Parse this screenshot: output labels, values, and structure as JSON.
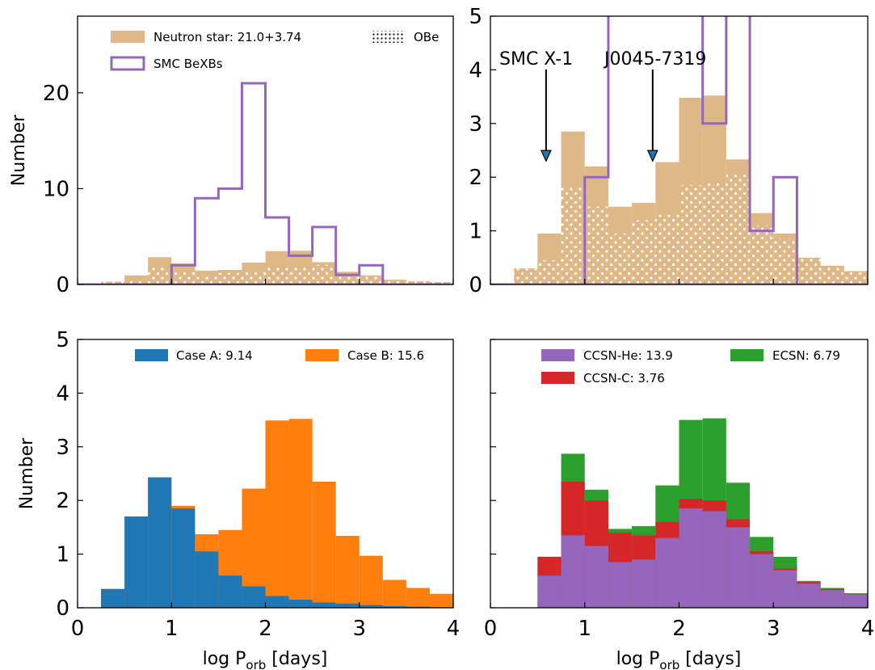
{
  "chart_data": [
    {
      "type": "histogram",
      "panel": "top-left",
      "ylabel": "Number",
      "xlim": [
        0,
        4
      ],
      "ylim": [
        0,
        28
      ],
      "xticks": [
        0,
        1,
        2,
        3,
        4
      ],
      "yticks": [
        0,
        10,
        20
      ],
      "bin_edges": [
        0.25,
        0.5,
        0.75,
        1.0,
        1.25,
        1.5,
        1.75,
        2.0,
        2.25,
        2.5,
        2.75,
        3.0,
        3.25,
        3.5,
        3.75,
        4.0
      ],
      "series": [
        {
          "name": "Neutron star: 21.0+3.74",
          "style": "filled",
          "color": "#deb887",
          "values": [
            0.3,
            0.95,
            2.85,
            2.2,
            1.45,
            1.52,
            2.28,
            3.48,
            3.52,
            2.33,
            1.33,
            0.95,
            0.5,
            0.35,
            0.25
          ],
          "stack_base": [
            0.3,
            0.45,
            1.8,
            1.45,
            0.95,
            1.2,
            1.3,
            1.85,
            1.9,
            2.05,
            1.1,
            0.85,
            0.5,
            0.35,
            0.25
          ]
        },
        {
          "name": "OBe",
          "style": "dotted"
        },
        {
          "name": "SMC BeXBs",
          "style": "step",
          "color": "#9467bd",
          "values": [
            0,
            0,
            0,
            2,
            9,
            10,
            21,
            7,
            3,
            6,
            1,
            2,
            0,
            0,
            0
          ]
        }
      ],
      "legend": "top"
    },
    {
      "type": "histogram",
      "panel": "top-right",
      "xlim": [
        0,
        4
      ],
      "ylim": [
        0,
        5
      ],
      "xticks": [
        0,
        1,
        2,
        3,
        4
      ],
      "yticks": [
        0,
        1,
        2,
        3,
        4,
        5
      ],
      "annotations": [
        {
          "text": "SMC X-1",
          "x": 0.59,
          "arrow_tip_y": 2.3
        },
        {
          "text": "J0045-7319",
          "x": 1.72,
          "arrow_tip_y": 2.3
        }
      ]
    },
    {
      "type": "histogram",
      "panel": "bottom-left",
      "ylabel": "Number",
      "xlabel": "log P",
      "xlabel_sub": "orb",
      "xlabel_suffix": " [days]",
      "xlim": [
        0,
        4
      ],
      "ylim": [
        0,
        5
      ],
      "xticks": [
        0,
        1,
        2,
        3,
        4
      ],
      "yticks": [
        0,
        1,
        2,
        3,
        4,
        5
      ],
      "bin_edges": [
        0.25,
        0.5,
        0.75,
        1.0,
        1.25,
        1.5,
        1.75,
        2.0,
        2.25,
        2.5,
        2.75,
        3.0,
        3.25,
        3.5,
        3.75,
        4.0
      ],
      "series": [
        {
          "name": "Case A: 9.14",
          "color": "#1f77b4",
          "values": [
            0.35,
            1.7,
            2.43,
            1.85,
            1.05,
            0.6,
            0.4,
            0.22,
            0.15,
            0.1,
            0.08,
            0.05,
            0.03,
            0.02,
            0.01
          ]
        },
        {
          "name": "Case B: 15.6",
          "color": "#ff7f0e",
          "values": [
            0.35,
            1.7,
            2.43,
            1.9,
            1.37,
            1.45,
            2.22,
            3.49,
            3.52,
            2.35,
            1.34,
            0.97,
            0.52,
            0.37,
            0.26
          ]
        }
      ],
      "legend": "top"
    },
    {
      "type": "histogram",
      "panel": "bottom-right",
      "xlabel": "log P",
      "xlabel_sub": "orb",
      "xlabel_suffix": " [days]",
      "xlim": [
        0,
        4
      ],
      "ylim": [
        0,
        5
      ],
      "xticks": [
        0,
        1,
        2,
        3,
        4
      ],
      "yticks": [
        0,
        1,
        2,
        3,
        4,
        5
      ],
      "bin_edges": [
        0.5,
        0.75,
        1.0,
        1.25,
        1.5,
        1.75,
        2.0,
        2.25,
        2.5,
        2.75,
        3.0,
        3.25,
        3.5,
        3.75,
        4.0
      ],
      "series": [
        {
          "name": "CCSN-He: 13.9",
          "color": "#9467bd",
          "values": [
            0.6,
            1.35,
            1.15,
            0.85,
            0.9,
            1.3,
            1.85,
            1.8,
            1.5,
            1.0,
            0.7,
            0.45,
            0.33,
            0.25
          ]
        },
        {
          "name": "CCSN-C: 3.76",
          "color": "#d62728",
          "values": [
            0.95,
            2.35,
            2.0,
            1.4,
            1.35,
            1.6,
            2.03,
            2.0,
            1.65,
            1.05,
            0.73,
            0.48,
            0.35,
            0.26
          ]
        },
        {
          "name": "ECSN: 6.79",
          "color": "#2ca02c",
          "values": [
            0.95,
            2.87,
            2.2,
            1.47,
            1.52,
            2.28,
            3.5,
            3.53,
            2.33,
            1.32,
            0.95,
            0.5,
            0.37,
            0.27
          ]
        }
      ],
      "legend": "top"
    }
  ]
}
